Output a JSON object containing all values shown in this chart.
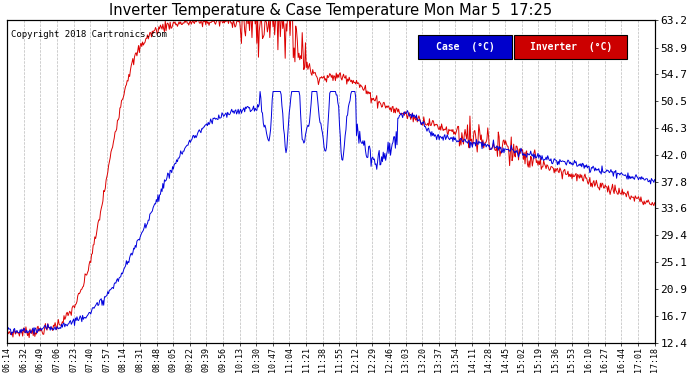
{
  "title": "Inverter Temperature & Case Temperature Mon Mar 5  17:25",
  "copyright": "Copyright 2018 Cartronics.com",
  "ylabel_right_ticks": [
    12.4,
    16.7,
    20.9,
    25.1,
    29.4,
    33.6,
    37.8,
    42.0,
    46.3,
    50.5,
    54.7,
    58.9,
    63.2
  ],
  "ylim": [
    12.4,
    63.2
  ],
  "background_color": "#ffffff",
  "grid_color": "#bbbbbb",
  "case_color": "#0000dd",
  "inverter_color": "#dd0000",
  "legend_case_bg": "#0000cc",
  "legend_inverter_bg": "#cc0000",
  "x_tick_labels": [
    "06:14",
    "06:32",
    "06:49",
    "07:06",
    "07:23",
    "07:40",
    "07:57",
    "08:14",
    "08:31",
    "08:48",
    "09:05",
    "09:22",
    "09:39",
    "09:56",
    "10:13",
    "10:30",
    "10:47",
    "11:04",
    "11:21",
    "11:38",
    "11:55",
    "12:12",
    "12:29",
    "12:46",
    "13:03",
    "13:20",
    "13:37",
    "13:54",
    "14:11",
    "14:28",
    "14:45",
    "15:02",
    "15:19",
    "15:36",
    "15:53",
    "16:10",
    "16:27",
    "16:44",
    "17:01",
    "17:18"
  ]
}
